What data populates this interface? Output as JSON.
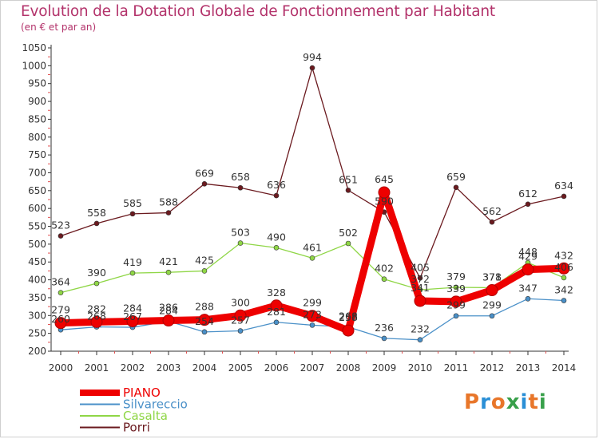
{
  "header": {
    "title": "Evolution de la Dotation Globale de Fonctionnement par Habitant",
    "subtitle": "(en € et par an)"
  },
  "logo": {
    "text": "Proxiti",
    "colors": [
      "#e8762a",
      "#2a8fd6",
      "#e8762a",
      "#38a04a",
      "#2a8fd6",
      "#e8762a",
      "#38a04a"
    ]
  },
  "chart_data": {
    "type": "line",
    "title": "Evolution de la Dotation Globale de Fonctionnement par Habitant",
    "subtitle": "(en € et par an)",
    "xlabel": "",
    "ylabel": "",
    "x": [
      "2000",
      "2001",
      "2002",
      "2003",
      "2004",
      "2005",
      "2006",
      "2007",
      "2008",
      "2009",
      "2010",
      "2011",
      "2012",
      "2013",
      "2014"
    ],
    "y_ticks": [
      200,
      250,
      300,
      350,
      400,
      450,
      500,
      550,
      600,
      650,
      700,
      750,
      800,
      850,
      900,
      950,
      1000,
      1050
    ],
    "ylim": [
      200,
      1050
    ],
    "grid": false,
    "legend_position": "bottom-left",
    "series": [
      {
        "name": "Porri",
        "color": "#6b1a1f",
        "values": [
          523,
          558,
          585,
          588,
          669,
          658,
          636,
          994,
          651,
          590,
          405,
          659,
          562,
          612,
          634
        ],
        "labels": [
          "523",
          "558",
          "585",
          "588",
          "669",
          "658",
          "636",
          "994",
          "651",
          "590",
          "405",
          "659",
          "562",
          "612",
          "634"
        ]
      },
      {
        "name": "Casalta",
        "color": "#8fd646",
        "values": [
          364,
          390,
          419,
          421,
          425,
          503,
          490,
          461,
          502,
          402,
          372,
          379,
          378,
          448,
          406
        ],
        "labels": [
          "364",
          "390",
          "419",
          "421",
          "425",
          "503",
          "490",
          "461",
          "502",
          "402",
          "372",
          "379",
          "378",
          "448",
          "406"
        ]
      },
      {
        "name": "Silvareccio",
        "color": "#4a90c8",
        "values": [
          260,
          268,
          267,
          284,
          254,
          257,
          281,
          273,
          268,
          236,
          232,
          299,
          299,
          347,
          342
        ],
        "labels": [
          "260",
          "268",
          "267",
          "284",
          "254",
          "257",
          "281",
          "273",
          "268",
          "236",
          "232",
          "299",
          "299",
          "347",
          "342"
        ]
      },
      {
        "name": "PIANO",
        "color": "#ee0000",
        "values": [
          279,
          282,
          284,
          286,
          288,
          300,
          328,
          299,
          258,
          645,
          341,
          339,
          371,
          429,
          432
        ],
        "labels": [
          "279",
          "282",
          "284",
          "286",
          "288",
          "300",
          "328",
          "299",
          "258",
          "645",
          "341",
          "339",
          "371",
          "429",
          "432"
        ]
      }
    ],
    "legend": [
      "PIANO",
      "Silvareccio",
      "Casalta",
      "Porri"
    ]
  }
}
